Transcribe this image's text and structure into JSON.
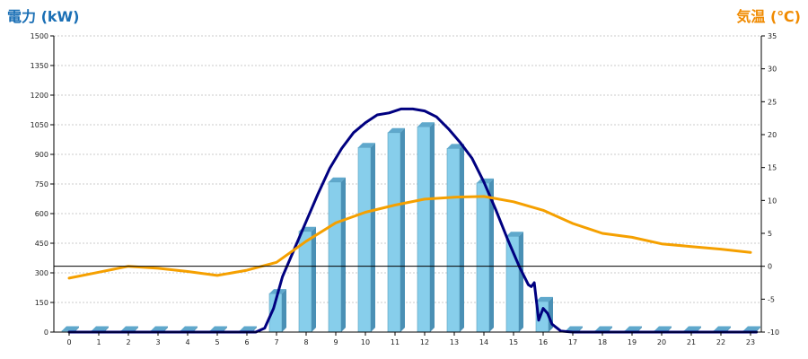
{
  "chart_data": {
    "type": "bar+line",
    "left_axis": {
      "label": "電力 (kW)",
      "min": 0,
      "max": 1500,
      "step": 150,
      "color": "#1a6fb5"
    },
    "right_axis": {
      "label": "気温 (℃)",
      "min": -10,
      "max": 35,
      "step": 5,
      "color": "#f08a00"
    },
    "x_ticks": [
      "0",
      "1",
      "2",
      "3",
      "4",
      "5",
      "6",
      "7",
      "8",
      "9",
      "10",
      "11",
      "12",
      "13",
      "14",
      "15",
      "16",
      "17",
      "18",
      "19",
      "20",
      "21",
      "22",
      "23"
    ],
    "grid": "horizontal-dashed",
    "zero_line_temp": 0,
    "series": [
      {
        "kind": "bar",
        "axis": "left",
        "color": "#87ceeb",
        "values": [
          0,
          0,
          0,
          0,
          0,
          0,
          0,
          195,
          510,
          760,
          935,
          1010,
          1040,
          930,
          755,
          485,
          155,
          0,
          0,
          0,
          0,
          0,
          0,
          0
        ]
      },
      {
        "kind": "line",
        "axis": "left",
        "color": "#000080",
        "points": [
          [
            0,
            0
          ],
          [
            6.3,
            0
          ],
          [
            6.6,
            20
          ],
          [
            6.9,
            120
          ],
          [
            7.2,
            280
          ],
          [
            7.6,
            420
          ],
          [
            8,
            560
          ],
          [
            8.4,
            700
          ],
          [
            8.8,
            830
          ],
          [
            9.2,
            930
          ],
          [
            9.6,
            1010
          ],
          [
            10,
            1060
          ],
          [
            10.4,
            1100
          ],
          [
            10.8,
            1110
          ],
          [
            11.2,
            1130
          ],
          [
            11.6,
            1130
          ],
          [
            12,
            1120
          ],
          [
            12.4,
            1090
          ],
          [
            12.8,
            1030
          ],
          [
            13.2,
            960
          ],
          [
            13.6,
            880
          ],
          [
            14,
            760
          ],
          [
            14.4,
            620
          ],
          [
            14.8,
            470
          ],
          [
            15.2,
            330
          ],
          [
            15.5,
            240
          ],
          [
            15.6,
            230
          ],
          [
            15.7,
            250
          ],
          [
            15.85,
            60
          ],
          [
            16,
            120
          ],
          [
            16.15,
            95
          ],
          [
            16.3,
            40
          ],
          [
            16.6,
            5
          ],
          [
            17,
            0
          ],
          [
            23.2,
            0
          ]
        ]
      },
      {
        "kind": "line",
        "axis": "right",
        "color": "#f5a000",
        "points": [
          [
            0,
            -1.8
          ],
          [
            1,
            -0.9
          ],
          [
            2,
            0
          ],
          [
            3,
            -0.3
          ],
          [
            4,
            -0.8
          ],
          [
            5,
            -1.4
          ],
          [
            6,
            -0.6
          ],
          [
            7,
            0.6
          ],
          [
            8,
            3.8
          ],
          [
            9,
            6.6
          ],
          [
            10,
            8.2
          ],
          [
            11,
            9.3
          ],
          [
            12,
            10.2
          ],
          [
            13,
            10.5
          ],
          [
            14,
            10.6
          ],
          [
            15,
            9.8
          ],
          [
            16,
            8.5
          ],
          [
            17,
            6.5
          ],
          [
            18,
            5
          ],
          [
            19,
            4.4
          ],
          [
            20,
            3.4
          ],
          [
            21,
            3
          ],
          [
            22,
            2.6
          ],
          [
            23,
            2.1
          ]
        ]
      }
    ]
  }
}
